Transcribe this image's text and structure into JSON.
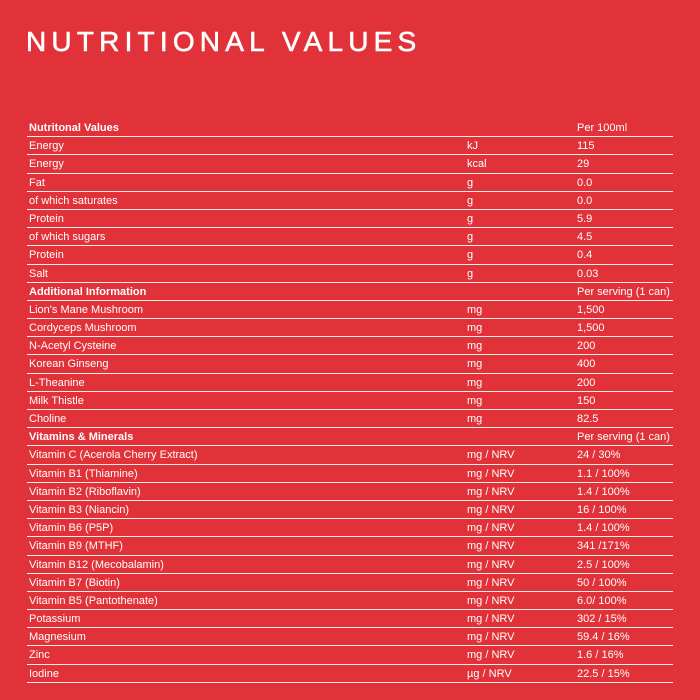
{
  "header": {
    "title": "NUTRITIONAL VALUES"
  },
  "table": {
    "sections": [
      {
        "title": "Nutritonal Values",
        "column_heading": "Per 100ml",
        "rows": [
          [
            "Energy",
            "kJ",
            "115"
          ],
          [
            "Energy",
            "kcal",
            "29"
          ],
          [
            "Fat",
            "g",
            "0.0"
          ],
          [
            "of which saturates",
            "g",
            "0.0"
          ],
          [
            "Protein",
            "g",
            "5.9"
          ],
          [
            "of which sugars",
            "g",
            "4.5"
          ],
          [
            "Protein",
            "g",
            "0.4"
          ],
          [
            "Salt",
            "g",
            "0.03"
          ]
        ]
      },
      {
        "title": "Additional Information",
        "column_heading": "Per serving (1 can)",
        "rows": [
          [
            "Lion's Mane Mushroom",
            "mg",
            "1,500"
          ],
          [
            "Cordyceps Mushroom",
            "mg",
            "1,500"
          ],
          [
            "N-Acetyl Cysteine",
            "mg",
            "200"
          ],
          [
            "Korean Ginseng",
            "mg",
            "400"
          ],
          [
            "L-Theanine",
            "mg",
            "200"
          ],
          [
            "Milk Thistle",
            "mg",
            "150"
          ],
          [
            "Choline",
            "mg",
            "82.5"
          ]
        ]
      },
      {
        "title": "Vitamins & Minerals",
        "column_heading": "Per serving (1 can)",
        "rows": [
          [
            "Vitamin C (Acerola Cherry Extract)",
            "mg / NRV",
            "24 / 30%"
          ],
          [
            "Vitamin B1 (Thiamine)",
            "mg / NRV",
            "1.1 / 100%"
          ],
          [
            "Vitamin B2 (Riboflavin)",
            "mg / NRV",
            "1.4 / 100%"
          ],
          [
            "Vitamin B3 (Niancin)",
            "mg / NRV",
            "16 / 100%"
          ],
          [
            "Vitamin B6 (P5P)",
            "mg / NRV",
            "1.4 / 100%"
          ],
          [
            "Vitamin B9 (MTHF)",
            "mg / NRV",
            "341 /171%"
          ],
          [
            "Vitamin B12 (Mecobalamin)",
            "mg / NRV",
            "2.5 / 100%"
          ],
          [
            "Vitamin B7 (Biotin)",
            "mg / NRV",
            "50 / 100%"
          ],
          [
            "Vitamin B5 (Pantothenate)",
            "mg / NRV",
            "6.0/ 100%"
          ],
          [
            "Potassium",
            "mg / NRV",
            "302 / 15%"
          ],
          [
            "Magnesium",
            "mg / NRV",
            "59.4 / 16%"
          ],
          [
            "Zinc",
            "mg / NRV",
            "1.6 / 16%"
          ],
          [
            "Iodine",
            "µg / NRV",
            "22.5 / 15%"
          ]
        ]
      }
    ]
  }
}
